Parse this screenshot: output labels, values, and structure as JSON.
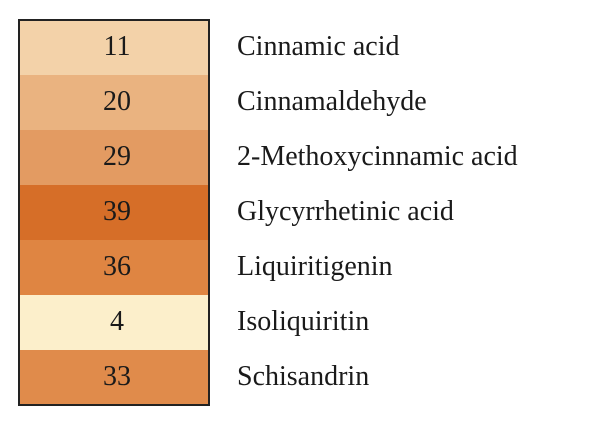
{
  "table": {
    "rows": [
      {
        "value": 11,
        "label": "Cinnamic acid",
        "color": "#f3d2a9"
      },
      {
        "value": 20,
        "label": "Cinnamaldehyde",
        "color": "#eab380"
      },
      {
        "value": 29,
        "label": "2-Methoxycinnamic acid",
        "color": "#e39b62"
      },
      {
        "value": 39,
        "label": "Glycyrrhetinic acid",
        "color": "#d66e28"
      },
      {
        "value": 36,
        "label": "Liquiritigenin",
        "color": "#df8542"
      },
      {
        "value": 4,
        "label": "Isoliquiritin",
        "color": "#fcefcb"
      },
      {
        "value": 33,
        "label": "Schisandrin",
        "color": "#e08b4b"
      }
    ]
  }
}
